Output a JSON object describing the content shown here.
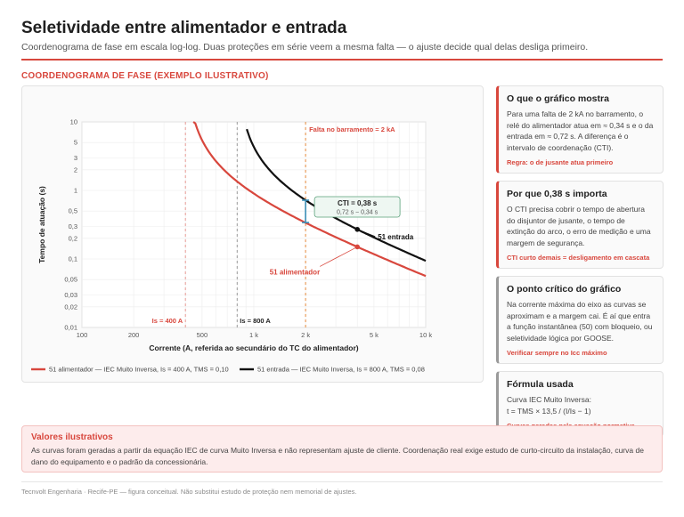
{
  "page": {
    "title": "Seletividade entre alimentador e entrada",
    "subtitle": "Coordenograma de fase em escala log-log. Duas proteções em série veem a mesma falta — o ajuste decide qual delas desliga primeiro.",
    "section_label": "COORDENOGRAMA DE FASE (EXEMPLO ILUSTRATIVO)"
  },
  "chart_data": {
    "type": "line",
    "xscale": "log",
    "yscale": "log",
    "xlim": [
      100,
      10000
    ],
    "ylim": [
      0.01,
      10
    ],
    "xlabel": "Corrente (A, referida ao secundário do TC do alimentador)",
    "ylabel": "Tempo de atuação (s)",
    "x_ticks": [
      100,
      200,
      500,
      1000,
      2000,
      5000,
      10000
    ],
    "x_tick_labels": [
      "100",
      "200",
      "500",
      "1 k",
      "2 k",
      "5 k",
      "10 k"
    ],
    "y_ticks": [
      0.01,
      0.02,
      0.03,
      0.05,
      0.1,
      0.2,
      0.3,
      0.5,
      1,
      2,
      3,
      5,
      10
    ],
    "y_tick_labels": [
      "0,01",
      "0,02",
      "0,03",
      "0,05",
      "0,1",
      "0,2",
      "0,3",
      "0,5",
      "1",
      "2",
      "3",
      "5",
      "10"
    ],
    "grid": true,
    "legend_position": "bottom",
    "series": [
      {
        "name": "51 alimentador — IEC Muito Inversa, Is = 400 A, TMS = 0,10",
        "label": "51 alimentador",
        "color": "#d8473d",
        "pickup": 400,
        "tms": 0.1,
        "x_from": 445,
        "x_to": 10000
      },
      {
        "name": "51 entrada — IEC Muito Inversa, Is = 800 A, TMS = 0,08",
        "label": "51 entrada",
        "color": "#111111",
        "pickup": 800,
        "tms": 0.08,
        "x_from": 910,
        "x_to": 10000
      }
    ],
    "vlines": [
      {
        "x": 400,
        "label": "Is = 400 A",
        "color": "#e79a94"
      },
      {
        "x": 800,
        "label": "Is = 800 A",
        "color": "#9a9a9a"
      },
      {
        "x": 2000,
        "label": "Falta no barramento = 2 kA",
        "color": "#e48a3c"
      }
    ],
    "markers": [
      {
        "series": 0,
        "x": 4000
      },
      {
        "series": 1,
        "x": 4000
      }
    ],
    "cti": {
      "x": 2000,
      "t_upstream": 0.72,
      "t_downstream": 0.34,
      "label": "CTI = 0,38 s",
      "detail": "0,72 s − 0,34 s"
    }
  },
  "cards": [
    {
      "title": "O que o gráfico mostra",
      "body": "Para uma falta de 2 kA no barramento, o relé do alimentador atua em ≈ 0,34 s e o da entrada em ≈ 0,72 s. A diferença é o intervalo de coordenação (CTI).",
      "note": "Regra: o de jusante atua primeiro"
    },
    {
      "title": "Por que 0,38 s importa",
      "body": "O CTI precisa cobrir o tempo de abertura do disjuntor de jusante, o tempo de extinção do arco, o erro de medição e uma margem de segurança.",
      "note": "CTI curto demais = desligamento em cascata"
    },
    {
      "title": "O ponto crítico do gráfico",
      "body": "Na corrente máxima do eixo as curvas se aproximam e a margem cai. É aí que entra a função instantânea (50) com bloqueio, ou seletividade lógica por GOOSE.",
      "note": "Verificar sempre no Icc máximo"
    },
    {
      "title": "Fórmula usada",
      "body": "Curva IEC Muito Inversa:\nt = TMS × 13,5 / (I/Is − 1)",
      "note": "Curvas geradas pela equação normativa"
    }
  ],
  "alert": {
    "title": "Valores ilustrativos",
    "body": "As curvas foram geradas a partir da equação IEC de curva Muito Inversa e não representam ajuste de cliente. Coordenação real exige estudo de curto-circuito da instalação, curva de dano do equipamento e o padrão da concessionária."
  },
  "footer": "Tecnvolt Engenharia · Recife-PE — figura conceitual. Não substitui estudo de proteção nem memorial de ajustes."
}
